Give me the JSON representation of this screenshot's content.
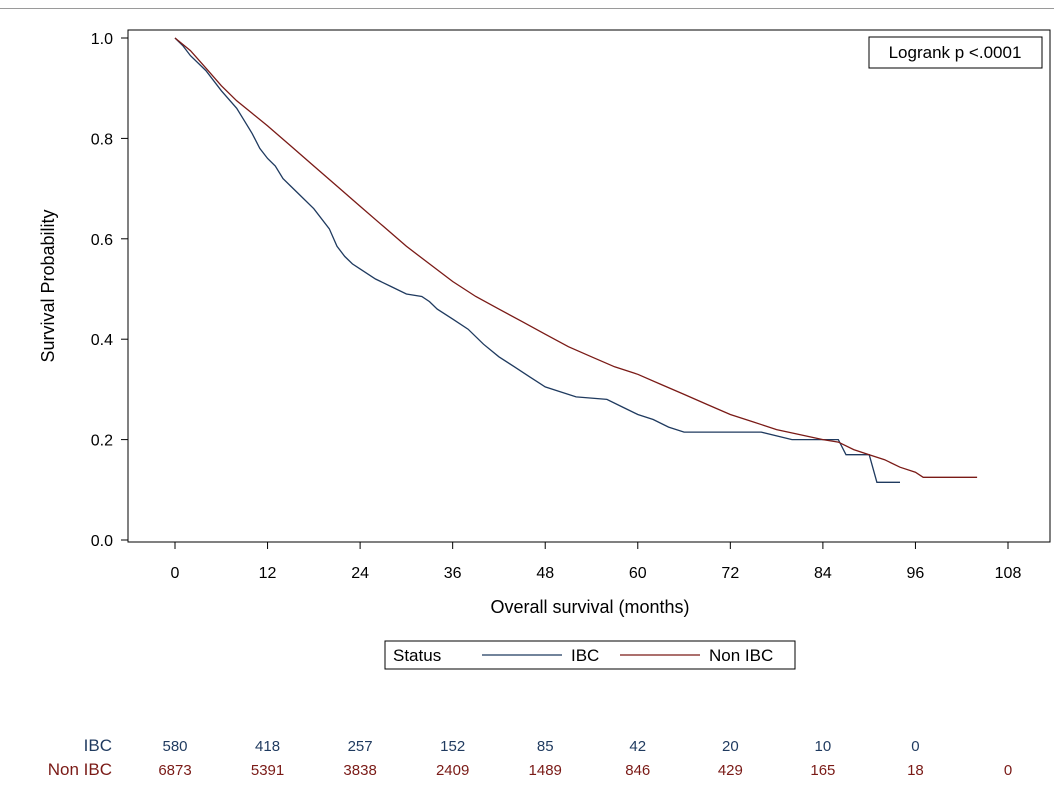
{
  "chart_data": {
    "type": "line",
    "subtype": "kaplan-meier",
    "xlabel": "Overall survival (months)",
    "ylabel": "Survival Probability",
    "xlim": [
      0,
      108
    ],
    "ylim": [
      0,
      1
    ],
    "xticks": [
      0,
      12,
      24,
      36,
      48,
      60,
      72,
      84,
      96,
      108
    ],
    "yticks": [
      "0.0",
      "0.2",
      "0.4",
      "0.6",
      "0.8",
      "1.0"
    ],
    "annotation": "Logrank p <.0001",
    "legend": {
      "title": "Status",
      "placement": "bottom-center"
    },
    "colors": {
      "IBC": "#1f3a5f",
      "Non IBC": "#7a1a16"
    },
    "series": [
      {
        "name": "IBC",
        "x": [
          0,
          1,
          2,
          4,
          6,
          8,
          9,
          10,
          11,
          12,
          13,
          14,
          15,
          16,
          18,
          20,
          21,
          22,
          23,
          24,
          26,
          28,
          30,
          32,
          33,
          34,
          36,
          38,
          40,
          42,
          44,
          46,
          48,
          50,
          52,
          56,
          58,
          60,
          62,
          64,
          66,
          68,
          70,
          72,
          76,
          80,
          86,
          87,
          90,
          91,
          94
        ],
        "y": [
          1.0,
          0.985,
          0.965,
          0.935,
          0.895,
          0.86,
          0.835,
          0.81,
          0.78,
          0.76,
          0.745,
          0.72,
          0.705,
          0.69,
          0.66,
          0.62,
          0.585,
          0.565,
          0.55,
          0.54,
          0.52,
          0.505,
          0.49,
          0.485,
          0.475,
          0.46,
          0.44,
          0.42,
          0.39,
          0.365,
          0.345,
          0.325,
          0.305,
          0.295,
          0.285,
          0.28,
          0.265,
          0.25,
          0.24,
          0.225,
          0.215,
          0.215,
          0.215,
          0.215,
          0.215,
          0.2,
          0.2,
          0.17,
          0.17,
          0.115,
          0.115
        ]
      },
      {
        "name": "Non IBC",
        "x": [
          0,
          2,
          4,
          6,
          8,
          10,
          12,
          15,
          18,
          21,
          24,
          27,
          30,
          33,
          36,
          39,
          42,
          45,
          48,
          51,
          54,
          57,
          60,
          63,
          66,
          69,
          72,
          75,
          78,
          81,
          84,
          86,
          88,
          90,
          92,
          94,
          96,
          97,
          100,
          104
        ],
        "y": [
          1.0,
          0.975,
          0.94,
          0.905,
          0.875,
          0.85,
          0.825,
          0.785,
          0.745,
          0.705,
          0.665,
          0.625,
          0.585,
          0.55,
          0.515,
          0.485,
          0.46,
          0.435,
          0.41,
          0.385,
          0.365,
          0.345,
          0.33,
          0.31,
          0.29,
          0.27,
          0.25,
          0.235,
          0.22,
          0.21,
          0.2,
          0.195,
          0.18,
          0.17,
          0.16,
          0.145,
          0.135,
          0.125,
          0.125,
          0.125
        ]
      }
    ],
    "risk_table": {
      "times": [
        0,
        12,
        24,
        36,
        48,
        60,
        72,
        84,
        96,
        108
      ],
      "rows": [
        {
          "name": "IBC",
          "counts": [
            "580",
            "418",
            "257",
            "152",
            "85",
            "42",
            "20",
            "10",
            "0",
            ""
          ]
        },
        {
          "name": "Non IBC",
          "counts": [
            "6873",
            "5391",
            "3838",
            "2409",
            "1489",
            "846",
            "429",
            "165",
            "18",
            "0"
          ]
        }
      ]
    }
  }
}
